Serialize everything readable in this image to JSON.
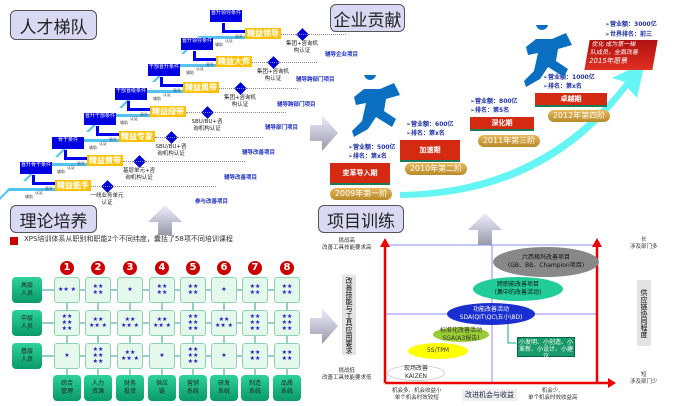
{
  "talent": {
    "title": "人才梯队",
    "levels": [
      {
        "name": "精益领导",
        "promo": "晋升领导条件",
        "cert": "集团+咨询机构认证",
        "project": "辅导企业项目"
      },
      {
        "name": "精益大师",
        "promo": "晋升领导条件",
        "cert": "集团+咨询机构认证",
        "project": "辅导跨部门项目"
      },
      {
        "name": "精益黑带",
        "promo": "干部晋升条件",
        "cert": "集团+咨询机构认证",
        "project": "辅导跨部门项目"
      },
      {
        "name": "精益绿带",
        "promo": "干部晋级条件",
        "cert": "SBU/BU+咨询机构认证",
        "project": "辅导部门项目"
      },
      {
        "name": "精益专家",
        "promo": "晋升干部条件",
        "cert": "SBU/BU+咨询机构认证",
        "project": "辅导改善项目"
      },
      {
        "name": "精益黄带",
        "promo": "骨干条件",
        "cert": "基层单元+咨询机构认证",
        "project": "辅导改善项目"
      },
      {
        "name": "精益能手",
        "promo": "晋升骨干条件",
        "cert": "一线业务单元认证",
        "project": "参与改善项目"
      }
    ],
    "stair_labels": [
      "辅助",
      "认证",
      "晋升"
    ]
  },
  "contribution": {
    "title": "企业贡献",
    "stages": [
      {
        "name": "变革导入期",
        "year": "2009年第一阶",
        "kpi1": "➢营业额：500亿",
        "kpi2": "➢排名：第x名"
      },
      {
        "name": "加速期",
        "year": "2010年第二阶",
        "kpi1": "➢营业额：600亿",
        "kpi2": "➢排名：第x名"
      },
      {
        "name": "深化期",
        "year": "2011年第三阶",
        "kpi1": "➢营业额：800亿",
        "kpi2": "➢排名：第5名"
      },
      {
        "name": "卓越期",
        "year": "2012年第四阶",
        "kpi1": "➢营业额：1000亿",
        "kpi2": "➢排名：第x名"
      }
    ],
    "vision": {
      "kpi1": "➢营业额：3000亿",
      "kpi2": "➢世界排名：前三",
      "line1": "优化 成为第一梯",
      "line2": "队成员，全面改善",
      "year": "2015年愿景"
    }
  },
  "theory": {
    "title": "理论培养",
    "note": "XPS培训体系从职别和职能2个不同纬度，囊括了58项不同培训课程",
    "columns": [
      "1",
      "2",
      "3",
      "4",
      "5",
      "6",
      "7",
      "8"
    ],
    "rows": [
      "高层人员",
      "中层人员",
      "基层人员"
    ],
    "stars": [
      [
        3,
        4,
        1,
        4,
        4,
        1,
        4,
        4
      ],
      [
        6,
        5,
        5,
        5,
        6,
        5,
        6,
        6
      ],
      [
        1,
        6,
        5,
        1,
        6,
        1,
        4,
        4
      ]
    ],
    "functions": [
      "综合管理",
      "人力资源",
      "财务投资",
      "供应链",
      "营销系统",
      "研发系统",
      "制造系统",
      "品质系统"
    ]
  },
  "project": {
    "title": "项目训练",
    "y_top": "挑战高\n改善工具技能要求高",
    "y_bottom": "挑战低\n改善工具技能要求低",
    "y_axis": "改善技能与工具应用要求",
    "x_left": "机会多、机会收益小\n单个机会时效较短",
    "x_axis": "改进机会与收益",
    "x_right": "机会少、\n单个机会时效收益高",
    "r_top": "长\n涉及部门多",
    "r_bottom": "短\n涉及部门少",
    "r_axis": "供应链协同程度",
    "items": [
      "现场改善\nKAIZEN",
      "5S/TPM",
      "标准化改善活动\nSGA(A3报告)",
      "功能改善活动\nSDA(QIT\\QC\\五小\\8D)",
      "跨职能改善项目\n(集中的改善活动)",
      "六西格玛改善项目\n(GB、BB、Champion项目)"
    ],
    "box": "小发明、小创造、小革新、小设计、小建议"
  },
  "colors": {
    "accent_red": "#d42a12",
    "blue": "#0000e0",
    "yellow": "#ffc000",
    "green": "#0a9a6a",
    "cyan": "#5ff"
  }
}
